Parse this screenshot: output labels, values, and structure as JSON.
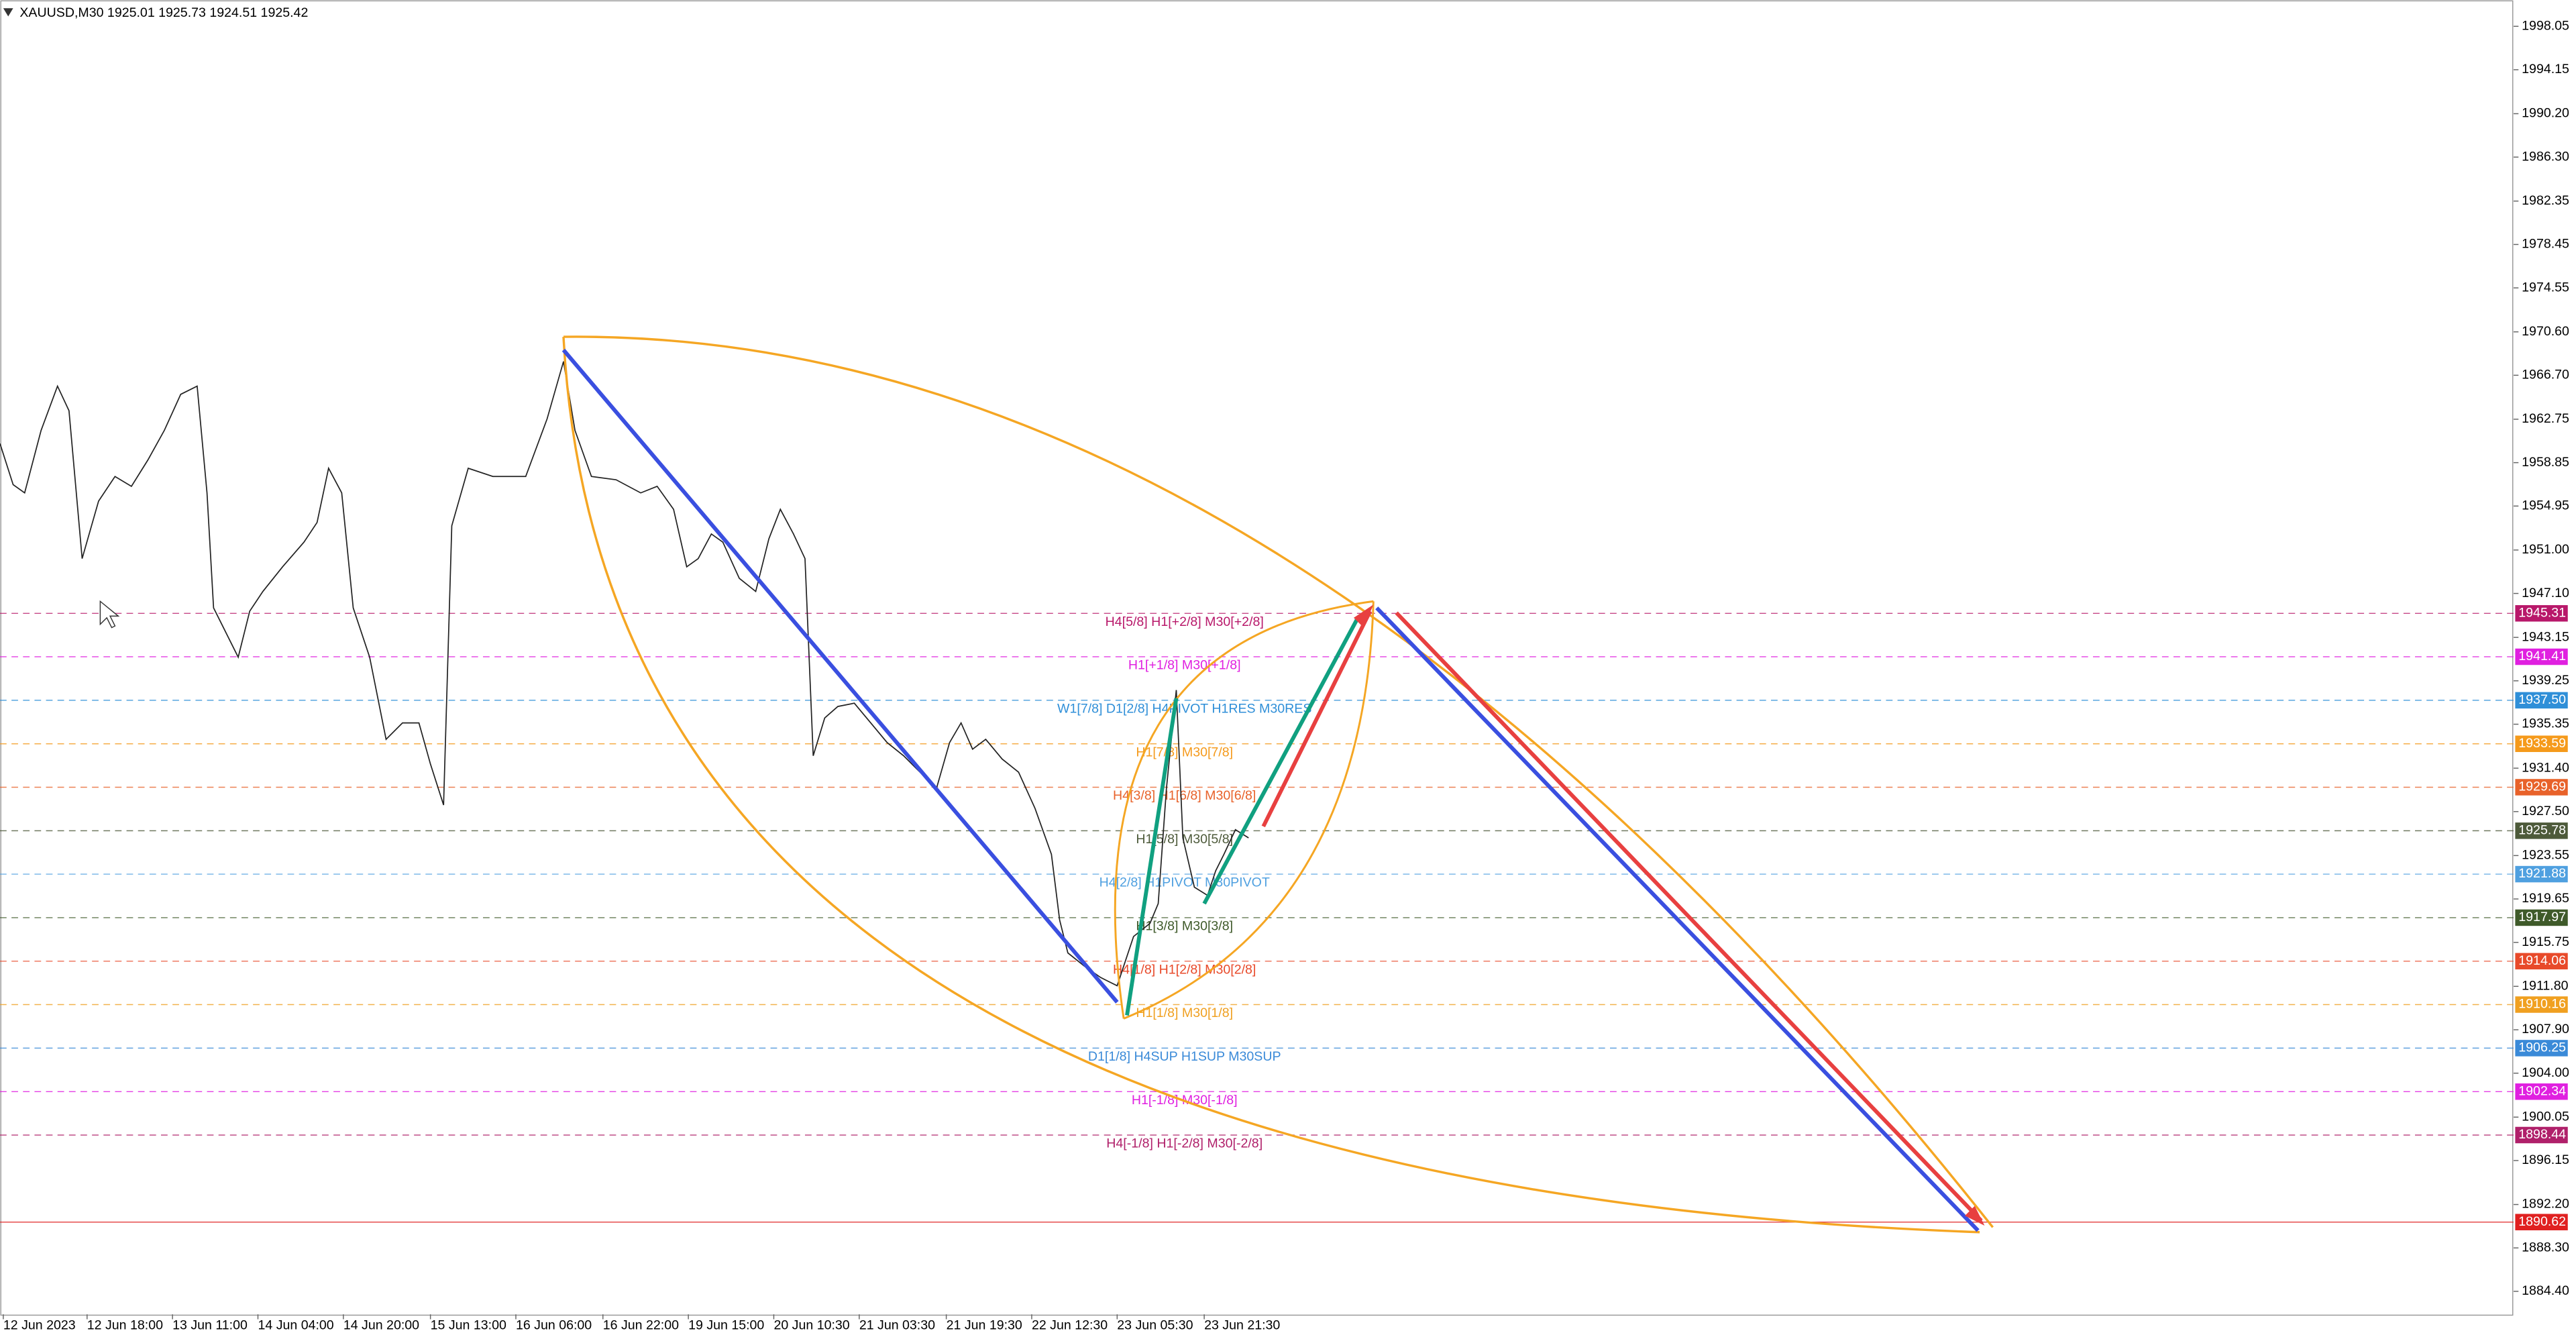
{
  "header": {
    "symbol_info": "XAUUSD,M30  1925.01 1925.73 1924.51 1925.42"
  },
  "price_axis": {
    "ticks": [
      1998.05,
      1994.15,
      {
        "value": 1990.2,
        "label": "1990.20"
      },
      {
        "value": 1986.3,
        "label": "1986.30"
      },
      1982.35,
      1978.45,
      1974.55,
      {
        "value": 1970.6,
        "label": "1970.60"
      },
      {
        "value": 1966.7,
        "label": "1966.70"
      },
      1962.75,
      1958.85,
      1954.95,
      {
        "value": 1951,
        "label": "1951.00"
      },
      {
        "value": 1947.1,
        "label": "1947.10"
      },
      1943.15,
      1939.25,
      1935.35,
      {
        "value": 1931.4,
        "label": "1931.40"
      },
      {
        "value": 1927.5,
        "label": "1927.50"
      },
      1923.55,
      1919.65,
      1915.75,
      {
        "value": 1911.8,
        "label": "1911.80"
      },
      {
        "value": 1907.9,
        "label": "1907.90"
      },
      {
        "value": 1904,
        "label": "1904.00"
      },
      1900.05,
      1896.15,
      {
        "value": 1892.2,
        "label": "1892.20"
      },
      {
        "value": 1888.3,
        "label": "1888.30"
      },
      {
        "value": 1884.4,
        "label": "1884.40"
      }
    ]
  },
  "time_axis": {
    "labels": [
      "12 Jun 2023",
      "12 Jun 18:00",
      "13 Jun 11:00",
      "14 Jun 04:00",
      "14 Jun 20:00",
      "15 Jun 13:00",
      "16 Jun 06:00",
      "16 Jun 22:00",
      "19 Jun 15:00",
      "20 Jun 10:30",
      "21 Jun 03:30",
      "21 Jun 19:30",
      "22 Jun 12:30",
      "23 Jun 05:30",
      "23 Jun 21:30"
    ]
  },
  "levels": [
    {
      "label": "H4[5/8] H1[+2/8] M30[+2/8]",
      "tag": "1945.31",
      "color": "#b8186a"
    },
    {
      "label": "H1[+1/8] M30[+1/8]",
      "tag": "1941.41",
      "color": "#e020e0"
    },
    {
      "label": "W1[7/8] D1[2/8] H4PIVOT H1RES M30RES",
      "tag": "1937.50",
      "color": "#2f8fd8"
    },
    {
      "label": "H1[7/8] M30[7/8]",
      "tag": "1933.59",
      "color": "#f59a1b"
    },
    {
      "label": "H4[3/8] H1[6/8] M30[6/8]",
      "tag": "1929.69",
      "color": "#e8622a"
    },
    {
      "label": "H1[5/8] M30[5/8]",
      "tag": "1925.78",
      "color": "#4d5a3a"
    },
    {
      "label": "H4[2/8] H1PIVOT M30PIVOT",
      "tag": "1921.88",
      "color": "#4fa0e0"
    },
    {
      "label": "H1[3/8] M30[3/8]",
      "tag": "1917.97",
      "color": "#3f5a2a"
    },
    {
      "label": "H4[1/8] H1[2/8] M30[2/8]",
      "tag": "1914.06",
      "color": "#e84a2a"
    },
    {
      "label": "H1[1/8] M30[1/8]",
      "tag": "1910.16",
      "color": "#f0a020"
    },
    {
      "label": "D1[1/8] H4SUP H1SUP M30SUP",
      "tag": "1906.25",
      "color": "#3a8ad8"
    },
    {
      "label": "H1[-1/8] M30[-1/8]",
      "tag": "1902.34",
      "color": "#e020e0"
    },
    {
      "label": "H4[-1/8] H1[-2/8] M30[-2/8]",
      "tag": "1898.44",
      "color": "#b0206a"
    },
    {
      "tag": "1890.62",
      "color": "#e02020"
    }
  ]
}
